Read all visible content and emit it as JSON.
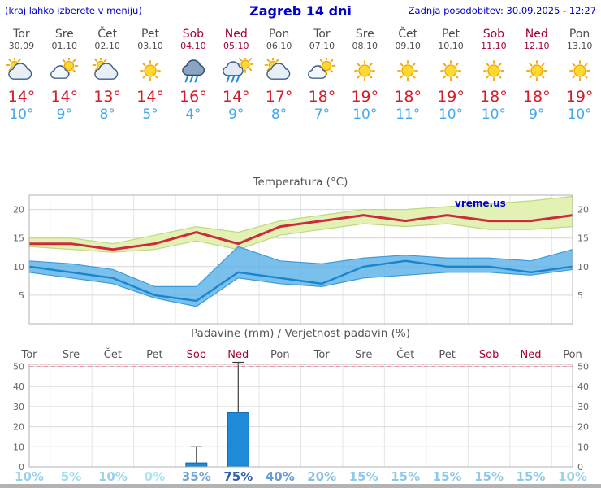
{
  "header": {
    "left_note": "(kraj lahko izberete v meniju)",
    "title": "Zagreb 14 dni",
    "updated": "Zadnja posodobitev: 30.09.2025 - 12:27"
  },
  "watermark": "vreme.us",
  "days": [
    {
      "name": "Tor",
      "date": "30.09",
      "weekend": false,
      "icon": "mostly-cloudy",
      "tmax": "14°",
      "tmin": "10°"
    },
    {
      "name": "Sre",
      "date": "01.10",
      "weekend": false,
      "icon": "partly-cloudy",
      "tmax": "14°",
      "tmin": "9°"
    },
    {
      "name": "Čet",
      "date": "02.10",
      "weekend": false,
      "icon": "mostly-cloudy",
      "tmax": "13°",
      "tmin": "8°"
    },
    {
      "name": "Pet",
      "date": "03.10",
      "weekend": false,
      "icon": "sunny",
      "tmax": "14°",
      "tmin": "5°"
    },
    {
      "name": "Sob",
      "date": "04.10",
      "weekend": true,
      "icon": "rain",
      "tmax": "16°",
      "tmin": "4°"
    },
    {
      "name": "Ned",
      "date": "05.10",
      "weekend": true,
      "icon": "sun-shower",
      "tmax": "14°",
      "tmin": "9°"
    },
    {
      "name": "Pon",
      "date": "06.10",
      "weekend": false,
      "icon": "mostly-cloudy",
      "tmax": "17°",
      "tmin": "8°"
    },
    {
      "name": "Tor",
      "date": "07.10",
      "weekend": false,
      "icon": "partly-cloudy",
      "tmax": "18°",
      "tmin": "7°"
    },
    {
      "name": "Sre",
      "date": "08.10",
      "weekend": false,
      "icon": "sunny",
      "tmax": "19°",
      "tmin": "10°"
    },
    {
      "name": "Čet",
      "date": "09.10",
      "weekend": false,
      "icon": "sunny",
      "tmax": "18°",
      "tmin": "11°"
    },
    {
      "name": "Pet",
      "date": "10.10",
      "weekend": false,
      "icon": "sunny",
      "tmax": "19°",
      "tmin": "10°"
    },
    {
      "name": "Sob",
      "date": "11.10",
      "weekend": true,
      "icon": "sunny",
      "tmax": "18°",
      "tmin": "10°"
    },
    {
      "name": "Ned",
      "date": "12.10",
      "weekend": true,
      "icon": "sunny",
      "tmax": "18°",
      "tmin": "9°"
    },
    {
      "name": "Pon",
      "date": "13.10",
      "weekend": false,
      "icon": "sunny",
      "tmax": "19°",
      "tmin": "10°"
    }
  ],
  "chart_data": [
    {
      "type": "line",
      "title": "Temperatura (°C)",
      "categories": [
        "Tor",
        "Sre",
        "Čet",
        "Pet",
        "Sob",
        "Ned",
        "Pon",
        "Tor",
        "Sre",
        "Čet",
        "Pet",
        "Sob",
        "Ned",
        "Pon"
      ],
      "ylim": [
        0,
        22.5
      ],
      "yticks": [
        5,
        10,
        15,
        20
      ],
      "grid": true,
      "band_colors": {
        "max": "#e3f1b4",
        "min": "#58b0e8"
      },
      "series": [
        {
          "name": "max-temp",
          "color": "#cd2b3b",
          "values": [
            14,
            14,
            13,
            14,
            16,
            14,
            17,
            18,
            19,
            18,
            19,
            18,
            18,
            19
          ]
        },
        {
          "name": "max-temp-range-upper",
          "values": [
            15,
            15,
            14,
            15.5,
            17,
            16,
            18,
            19,
            20,
            20,
            20.5,
            21,
            21.5,
            22.3
          ]
        },
        {
          "name": "max-temp-range-lower",
          "values": [
            13.5,
            13,
            12.5,
            13,
            14.5,
            13,
            15.5,
            16.5,
            17.5,
            17,
            17.5,
            16.5,
            16.5,
            17
          ]
        },
        {
          "name": "min-temp",
          "color": "#1b85cc",
          "values": [
            10,
            9,
            8,
            5,
            4,
            9,
            8,
            7,
            10,
            11,
            10,
            10,
            9,
            10
          ]
        },
        {
          "name": "min-temp-range-upper",
          "values": [
            11,
            10.5,
            9.5,
            6.5,
            6.5,
            13.5,
            11,
            10.5,
            11.5,
            12,
            11.5,
            11.5,
            11,
            13
          ]
        },
        {
          "name": "min-temp-range-lower",
          "values": [
            9,
            8,
            7,
            4.5,
            3,
            8,
            7,
            6.5,
            8,
            8.5,
            9,
            9,
            8.5,
            9.5
          ]
        }
      ]
    },
    {
      "type": "bar",
      "title": "Padavine (mm) / Verjetnost padavin (%)",
      "categories": [
        "Tor",
        "Sre",
        "Čet",
        "Pet",
        "Sob",
        "Ned",
        "Pon",
        "Tor",
        "Sre",
        "Čet",
        "Pet",
        "Sob",
        "Ned",
        "Pon"
      ],
      "ylim": [
        0,
        51
      ],
      "yticks": [
        0,
        10,
        20,
        30,
        40,
        50
      ],
      "bar_color": "#1e8bd8",
      "limit_line": {
        "value": 50,
        "color": "#ef92a2"
      },
      "precip_mm": [
        0,
        0,
        0,
        0,
        2,
        27,
        0,
        0,
        0,
        0,
        0,
        0,
        0,
        0
      ],
      "precip_max_mm": [
        0,
        0,
        0,
        0,
        10,
        52,
        0,
        0,
        0,
        0,
        0,
        0,
        0,
        0
      ],
      "prob_percent": [
        10,
        5,
        10,
        0,
        35,
        75,
        40,
        20,
        15,
        15,
        15,
        15,
        15,
        10
      ],
      "prob_labels": [
        "10%",
        "5%",
        "10%",
        "0%",
        "35%",
        "75%",
        "40%",
        "20%",
        "15%",
        "15%",
        "15%",
        "15%",
        "15%",
        "10%"
      ]
    }
  ],
  "colors": {
    "header_blue": "#0000cc",
    "weekend_red": "#a50034",
    "tmax_red": "#d41c2c",
    "tmin_blue": "#41a8f0"
  }
}
